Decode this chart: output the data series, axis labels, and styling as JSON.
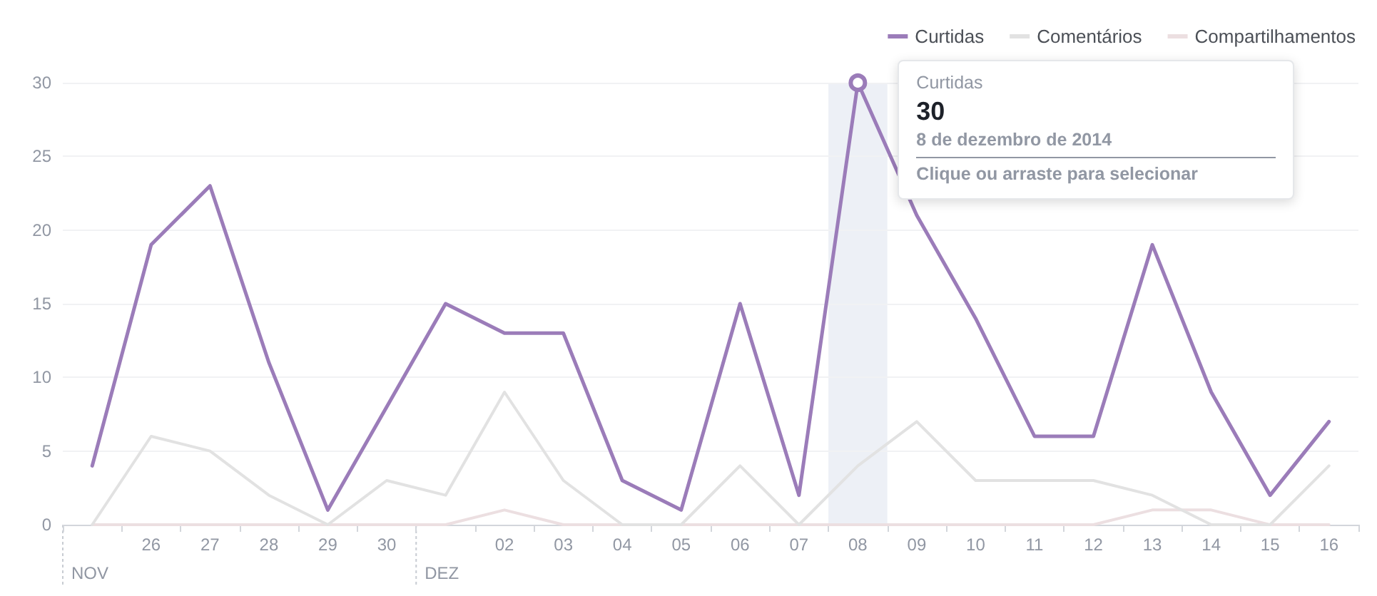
{
  "chart_data": {
    "type": "line",
    "categories": [
      null,
      "26",
      "27",
      "28",
      "29",
      "30",
      null,
      "02",
      "03",
      "04",
      "05",
      "06",
      "07",
      "08",
      "09",
      "10",
      "11",
      "12",
      "13",
      "14",
      "15",
      "16"
    ],
    "series": [
      {
        "name": "Curtidas",
        "color": "#9b7cb9",
        "values": [
          4,
          19,
          23,
          11,
          1,
          8,
          15,
          13,
          13,
          3,
          1,
          15,
          2,
          30,
          21,
          14,
          6,
          6,
          19,
          9,
          2,
          7
        ]
      },
      {
        "name": "Comentários",
        "color": "#e2e2e2",
        "values": [
          0,
          6,
          5,
          2,
          0,
          3,
          2,
          9,
          3,
          0,
          0,
          4,
          0,
          4,
          7,
          3,
          3,
          3,
          2,
          0,
          0,
          4
        ]
      },
      {
        "name": "Compartilhamentos",
        "color": "#ecdfe1",
        "values": [
          0,
          0,
          0,
          0,
          0,
          0,
          0,
          1,
          0,
          0,
          0,
          0,
          0,
          0,
          0,
          0,
          0,
          0,
          1,
          1,
          0,
          0
        ]
      }
    ],
    "ylim": [
      0,
      30
    ],
    "yticks": [
      0,
      5,
      10,
      15,
      20,
      25,
      30
    ],
    "grid": "y",
    "legend": "top right",
    "marker": "none",
    "line_style": "solid",
    "bands": [
      {
        "axis": "x",
        "from": "08",
        "to": "08",
        "color": "#edf0f6"
      }
    ],
    "annotations": [
      {
        "text": "NOV"
      },
      {
        "text": "DEZ"
      },
      {
        "text": "Curtidas\n30\n8 de dezembro de 2014\nClique ou arraste para selecionar",
        "x": "08",
        "y": 30
      }
    ]
  }
}
